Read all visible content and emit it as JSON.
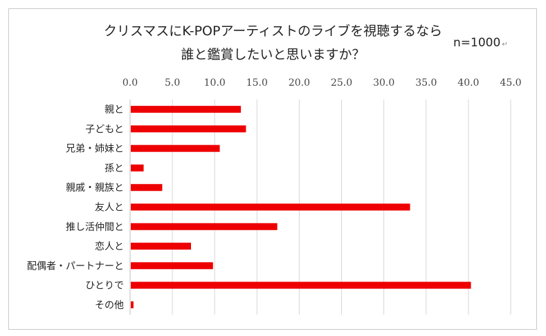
{
  "chart_data": {
    "type": "bar",
    "orientation": "horizontal",
    "title_line1": "クリスマスにK-POPアーティストのライブを視聴するなら",
    "title_line2": "誰と鑑賞したいと思いますか？",
    "sample_note": "n=1000",
    "xlim": [
      0,
      45
    ],
    "x_ticks": [
      "0.0",
      "5.0",
      "10.0",
      "15.0",
      "20.0",
      "25.0",
      "30.0",
      "35.0",
      "40.0",
      "45.0"
    ],
    "grid": "vertical",
    "bar_color": "#ee0000",
    "categories": [
      "親と",
      "子どもと",
      "兄弟・姉妹と",
      "孫と",
      "親戚・親族と",
      "友人と",
      "推し活仲間と",
      "恋人と",
      "配偶者・パートナーと",
      "ひとりで",
      "その他"
    ],
    "values": [
      13.1,
      13.7,
      10.6,
      1.6,
      3.8,
      33.1,
      17.4,
      7.2,
      9.8,
      40.3,
      0.4
    ]
  }
}
